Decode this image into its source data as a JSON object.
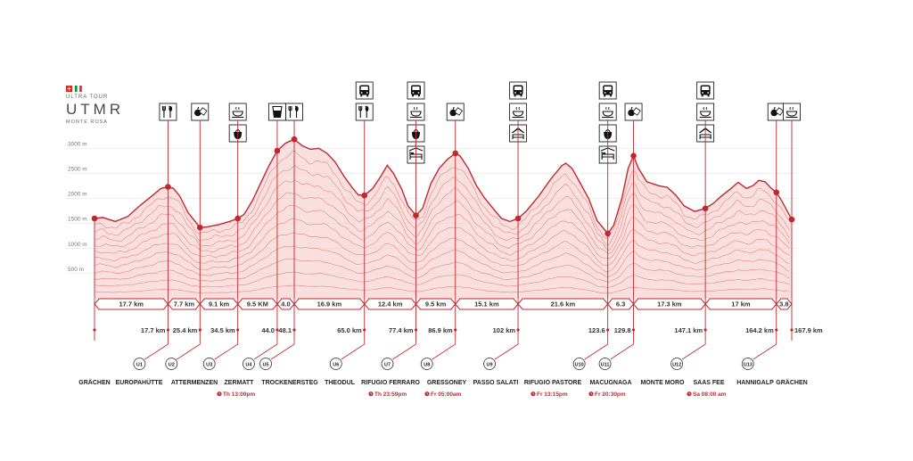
{
  "logo": {
    "top_line": "ULTRA TOUR",
    "main": "UTMR",
    "bottom_line": "MONTE ROSA"
  },
  "colors": {
    "accent": "#c0282e",
    "fill": "#f4c6c4",
    "line": "#e06b6b",
    "dark": "#333333",
    "flag_green": "#009246",
    "flag_red": "#ce2b37"
  },
  "chart_data": {
    "type": "area",
    "y_ticks": [
      {
        "v": 500,
        "label": "500 m"
      },
      {
        "v": 1000,
        "label": "1000 m"
      },
      {
        "v": 1500,
        "label": "1500 m"
      },
      {
        "v": 2000,
        "label": "2000 m"
      },
      {
        "v": 2500,
        "label": "2500 m"
      },
      {
        "v": 3000,
        "label": "3000 m"
      }
    ],
    "ylim": [
      0,
      3200
    ],
    "xlim": [
      0,
      167.9
    ],
    "grid": true,
    "profile": [
      [
        0,
        1600
      ],
      [
        2,
        1620
      ],
      [
        5,
        1540
      ],
      [
        8,
        1640
      ],
      [
        11,
        1860
      ],
      [
        14,
        2060
      ],
      [
        16,
        2200
      ],
      [
        17.7,
        2230
      ],
      [
        19,
        2200
      ],
      [
        20.5,
        2050
      ],
      [
        22.5,
        1720
      ],
      [
        25.4,
        1420
      ],
      [
        27,
        1430
      ],
      [
        30,
        1480
      ],
      [
        32.5,
        1540
      ],
      [
        34.5,
        1600
      ],
      [
        36,
        1680
      ],
      [
        38,
        1950
      ],
      [
        40,
        2300
      ],
      [
        42,
        2650
      ],
      [
        44,
        2950
      ],
      [
        46,
        3100
      ],
      [
        48.1,
        3180
      ],
      [
        50,
        3050
      ],
      [
        52,
        2980
      ],
      [
        54,
        3000
      ],
      [
        56,
        2900
      ],
      [
        58,
        2720
      ],
      [
        60,
        2450
      ],
      [
        62,
        2220
      ],
      [
        63.5,
        2070
      ],
      [
        65,
        2060
      ],
      [
        67,
        2200
      ],
      [
        69,
        2450
      ],
      [
        70.5,
        2660
      ],
      [
        72,
        2500
      ],
      [
        74,
        2180
      ],
      [
        75.5,
        1850
      ],
      [
        77.4,
        1660
      ],
      [
        79,
        1800
      ],
      [
        81,
        2300
      ],
      [
        83,
        2600
      ],
      [
        85,
        2780
      ],
      [
        86.9,
        2900
      ],
      [
        88,
        2850
      ],
      [
        90,
        2600
      ],
      [
        92,
        2250
      ],
      [
        94,
        2000
      ],
      [
        96,
        1800
      ],
      [
        98,
        1600
      ],
      [
        100,
        1540
      ],
      [
        102,
        1600
      ],
      [
        104,
        1750
      ],
      [
        107,
        2050
      ],
      [
        110,
        2400
      ],
      [
        112.5,
        2650
      ],
      [
        113.5,
        2700
      ],
      [
        115,
        2600
      ],
      [
        117,
        2300
      ],
      [
        119,
        2000
      ],
      [
        121,
        1560
      ],
      [
        123.6,
        1300
      ],
      [
        125,
        1460
      ],
      [
        127,
        2000
      ],
      [
        128.5,
        2600
      ],
      [
        129.8,
        2850
      ],
      [
        131,
        2600
      ],
      [
        133,
        2330
      ],
      [
        136,
        2250
      ],
      [
        138,
        2220
      ],
      [
        140,
        2060
      ],
      [
        142,
        1850
      ],
      [
        144.5,
        1740
      ],
      [
        147.1,
        1800
      ],
      [
        149,
        1900
      ],
      [
        151,
        2050
      ],
      [
        153,
        2180
      ],
      [
        155,
        2320
      ],
      [
        157,
        2200
      ],
      [
        158.5,
        2250
      ],
      [
        160,
        2360
      ],
      [
        161.5,
        2330
      ],
      [
        163,
        2200
      ],
      [
        164.2,
        2120
      ],
      [
        165.5,
        1950
      ],
      [
        167.9,
        1580
      ]
    ],
    "checkpoints": [
      {
        "km": 0,
        "elev": 1600,
        "label": "",
        "code": "",
        "name": "GRÄCHEN",
        "time": ""
      },
      {
        "km": 17.7,
        "elev": 2230,
        "label": "17.7 km",
        "code": "U1",
        "name": "EUROPAHÜTTE",
        "time": ""
      },
      {
        "km": 25.4,
        "elev": 1420,
        "label": "25.4 km",
        "code": "U2",
        "name": "ATTERMENZEN",
        "time": ""
      },
      {
        "km": 34.5,
        "elev": 1600,
        "label": "34.5 km",
        "code": "U3",
        "name": "ZERMATT",
        "time": "Th 13:00pm"
      },
      {
        "km": 44.0,
        "elev": 2950,
        "label": "44.0",
        "code": "U4",
        "name": "TROCKENERSTEG",
        "time": ""
      },
      {
        "km": 48.1,
        "elev": 3180,
        "label": "48.1",
        "code": "U5",
        "name": "THEODUL",
        "time": ""
      },
      {
        "km": 65.0,
        "elev": 2060,
        "label": "65.0 km",
        "code": "U6",
        "name": "RIFUGIO FERRARO",
        "time": "Th 23:59pm"
      },
      {
        "km": 77.4,
        "elev": 1660,
        "label": "77.4 km",
        "code": "U7",
        "name": "GRESSONEY",
        "time": "Fr 05:00am"
      },
      {
        "km": 86.9,
        "elev": 2900,
        "label": "86.9 km",
        "code": "U8",
        "name": "PASSO SALATI",
        "time": ""
      },
      {
        "km": 102,
        "elev": 1600,
        "label": "102 km",
        "code": "U9",
        "name": "RIFUGIO PASTORE",
        "time": "Fr 13:15pm"
      },
      {
        "km": 123.6,
        "elev": 1300,
        "label": "123.6",
        "code": "U10",
        "name": "MACUGNAGA",
        "time": "Fr 20:30pm"
      },
      {
        "km": 129.8,
        "elev": 2850,
        "label": "129.8",
        "code": "U11",
        "name": "MONTE MORO",
        "time": ""
      },
      {
        "km": 147.1,
        "elev": 1800,
        "label": "147.1 km",
        "code": "U12",
        "name": "SAAS FEE",
        "time": "Sa 08:00 am"
      },
      {
        "km": 164.2,
        "elev": 2120,
        "label": "164.2 km",
        "code": "U13",
        "name": "HANNIGALP",
        "time": ""
      },
      {
        "km": 167.9,
        "elev": 1580,
        "label": "167.9 km",
        "code": "",
        "name": "GRÄCHEN",
        "time": ""
      }
    ],
    "segments": [
      "17.7 km",
      "7.7 km",
      "9.1 km",
      "9.5 KM",
      "4.0",
      "16.9 km",
      "12.4 km",
      "9.5 km",
      "15.1 km",
      "21.6 km",
      "6.3",
      "17.3 km",
      "17 km",
      "3.8"
    ],
    "station_icons": [
      {
        "km": 17.7,
        "icons": [
          "food-icon"
        ]
      },
      {
        "km": 25.4,
        "icons": [
          "snack-icon"
        ]
      },
      {
        "km": 34.5,
        "icons": [
          "hot-meal-icon",
          "drop-bag-icon"
        ]
      },
      {
        "km": 44.0,
        "icons": [
          "drink-icon"
        ]
      },
      {
        "km": 48.1,
        "icons": [
          "food-icon"
        ]
      },
      {
        "km": 65.0,
        "icons": [
          "bus-icon",
          "food-icon"
        ]
      },
      {
        "km": 77.4,
        "icons": [
          "bus-icon",
          "hot-meal-icon",
          "drop-bag-icon",
          "bed-icon"
        ]
      },
      {
        "km": 86.9,
        "icons": [
          "snack-icon"
        ]
      },
      {
        "km": 102,
        "icons": [
          "bus-icon",
          "hot-meal-icon",
          "shelter-icon"
        ]
      },
      {
        "km": 123.6,
        "icons": [
          "bus-icon",
          "hot-meal-icon",
          "drop-bag-icon",
          "bed-icon"
        ]
      },
      {
        "km": 129.8,
        "icons": [
          "snack-icon"
        ]
      },
      {
        "km": 147.1,
        "icons": [
          "bus-icon",
          "hot-meal-icon",
          "shelter-icon"
        ]
      },
      {
        "km": 164.2,
        "icons": [
          "snack-icon"
        ]
      },
      {
        "km": 167.9,
        "icons": [
          "hot-meal-icon"
        ]
      }
    ]
  }
}
